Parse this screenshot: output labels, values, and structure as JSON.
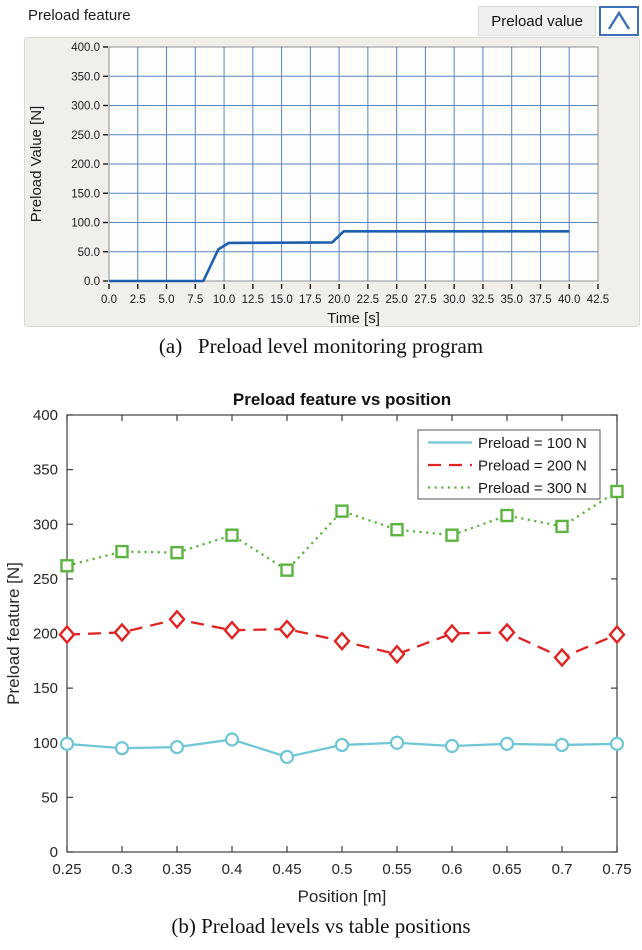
{
  "top_panel": {
    "header_label": "Preload feature",
    "legend_label": "Preload value"
  },
  "captions": {
    "a": "(a)   Preload level monitoring program",
    "b": "(b) Preload levels vs table positions"
  },
  "colors": {
    "top_grid": "#5585c4",
    "top_trace": "#1d5fae",
    "top_plot_bg": "#fdfdfc",
    "top_plot_border": "#909090",
    "legend_icon_blue": "#3f6fb5",
    "top_text": "#1a1a1a",
    "matlab_text": "#262626",
    "matlab_axis": "#404040",
    "cyan": "#6fc6d4",
    "red": "#e02424",
    "green": "#5cb340"
  },
  "chart_data": [
    {
      "id": "preload-monitor",
      "type": "line",
      "title": "Preload feature",
      "legend_label": "Preload value",
      "xlabel": "Time [s]",
      "ylabel": "Preload Value [N]",
      "xlim": [
        0,
        42.5
      ],
      "ylim": [
        0,
        400
      ],
      "grid": true,
      "xticks": [
        0,
        2.5,
        5,
        7.5,
        10,
        12.5,
        15,
        17.5,
        20,
        22.5,
        25,
        27.5,
        30,
        32.5,
        35,
        37.5,
        40,
        42.5
      ],
      "xtick_labels": [
        "0.0",
        "2.5",
        "5.0",
        "7.5",
        "10.0",
        "12.5",
        "15.0",
        "17.5",
        "20.0",
        "22.5",
        "25.0",
        "27.5",
        "30.0",
        "32.5",
        "35.0",
        "37.5",
        "40.0",
        "42.5"
      ],
      "yticks": [
        0,
        50,
        100,
        150,
        200,
        250,
        300,
        350,
        400
      ],
      "ytick_labels": [
        "0.0",
        "50.0",
        "100.0",
        "150.0",
        "200.0",
        "250.0",
        "300.0",
        "350.0",
        "400.0"
      ],
      "series": [
        {
          "name": "Preload value",
          "color": "#1d5fae",
          "points": [
            [
              0,
              0
            ],
            [
              8.2,
              0
            ],
            [
              9.5,
              54
            ],
            [
              10.4,
              65
            ],
            [
              19.4,
              66
            ],
            [
              20.4,
              85
            ],
            [
              40,
              85
            ]
          ]
        }
      ]
    },
    {
      "id": "preload-vs-position",
      "type": "line",
      "title": "Preload feature vs position",
      "xlabel": "Position [m]",
      "ylabel": "Preload feature [N]",
      "xlim": [
        0.25,
        0.75
      ],
      "ylim": [
        0,
        400
      ],
      "grid": false,
      "legend_position": "top-right-inside",
      "xticks": [
        0.25,
        0.3,
        0.35,
        0.4,
        0.45,
        0.5,
        0.55,
        0.6,
        0.65,
        0.7,
        0.75
      ],
      "xtick_labels": [
        "0.25",
        "0.3",
        "0.35",
        "0.4",
        "0.45",
        "0.5",
        "0.55",
        "0.6",
        "0.65",
        "0.7",
        "0.75"
      ],
      "yticks": [
        0,
        50,
        100,
        150,
        200,
        250,
        300,
        350,
        400
      ],
      "ytick_labels": [
        "0",
        "50",
        "100",
        "150",
        "200",
        "250",
        "300",
        "350",
        "400"
      ],
      "x": [
        0.25,
        0.3,
        0.35,
        0.4,
        0.45,
        0.5,
        0.55,
        0.6,
        0.65,
        0.7,
        0.75
      ],
      "series": [
        {
          "name": "Preload = 100 N",
          "color": "#6fc6d4",
          "linestyle": "solid",
          "marker": "circle",
          "values": [
            99,
            95,
            96,
            103,
            87,
            98,
            100,
            97,
            99,
            98,
            99
          ]
        },
        {
          "name": "Preload = 200 N",
          "color": "#e02424",
          "linestyle": "dashed",
          "marker": "diamond",
          "values": [
            199,
            201,
            213,
            203,
            204,
            193,
            181,
            200,
            201,
            178,
            199
          ]
        },
        {
          "name": "Preload = 300 N",
          "color": "#5cb340",
          "linestyle": "dotted",
          "marker": "square",
          "values": [
            262,
            275,
            274,
            290,
            258,
            312,
            295,
            290,
            308,
            298,
            330
          ]
        }
      ]
    }
  ]
}
